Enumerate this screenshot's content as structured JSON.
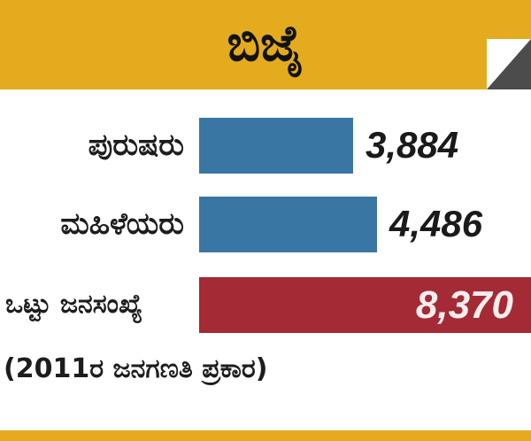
{
  "header": {
    "title": "ಬಿಜೈ"
  },
  "colors": {
    "header_bg": "#e3ab1d",
    "bar_blue": "#3a76a3",
    "total_red": "#a42a35",
    "corner_dark": "#4c4c4c"
  },
  "chart_data": {
    "type": "bar",
    "orientation": "horizontal",
    "title": "ಬಿಜೈ",
    "categories": [
      "ಪುರುಷರು",
      "ಮಹಿಳೆಯರು"
    ],
    "values": [
      3884,
      4486
    ],
    "value_labels": [
      "3,884",
      "4,486"
    ],
    "total": {
      "label": "ಒಟ್ಟು ಜನಸಂಖ್ಯೆ",
      "value": 8370,
      "value_label": "8,370"
    },
    "xlabel": "",
    "ylabel": "",
    "xlim": [
      0,
      8370
    ],
    "grid": false
  },
  "footnote": "(2011ರ ಜನಗಣತಿ ಪ್ರಕಾರ)"
}
